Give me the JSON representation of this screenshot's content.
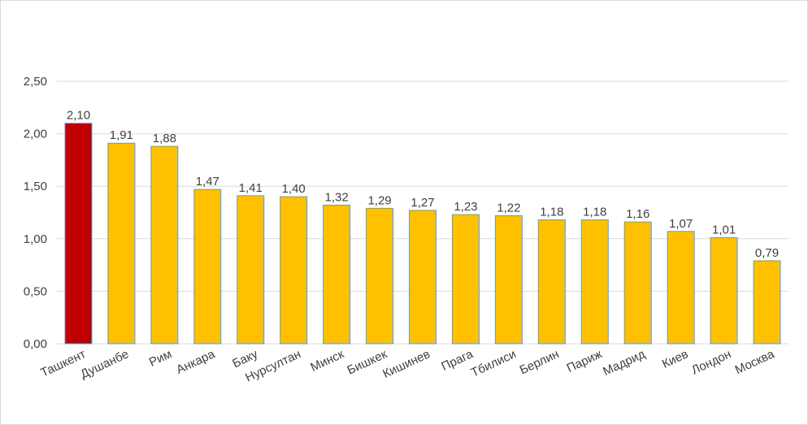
{
  "chart_data": {
    "type": "bar",
    "categories": [
      "Ташкент",
      "Душанбе",
      "Рим",
      "Анкара",
      "Баку",
      "Нурсултан",
      "Минск",
      "Бишкек",
      "Кишинев",
      "Прага",
      "Тбилиси",
      "Берлин",
      "Париж",
      "Мадрид",
      "Киев",
      "Лондон",
      "Москва"
    ],
    "values": [
      2.1,
      1.91,
      1.88,
      1.47,
      1.41,
      1.4,
      1.32,
      1.29,
      1.27,
      1.23,
      1.22,
      1.18,
      1.18,
      1.16,
      1.07,
      1.01,
      0.79
    ],
    "data_labels": [
      "2,10",
      "1,91",
      "1,88",
      "1,47",
      "1,41",
      "1,40",
      "1,32",
      "1,29",
      "1,27",
      "1,23",
      "1,22",
      "1,18",
      "1,18",
      "1,16",
      "1,07",
      "1,01",
      "0,79"
    ],
    "ylim": [
      0,
      2.5
    ],
    "yticks": [
      0,
      0.5,
      1.0,
      1.5,
      2.0,
      2.5
    ],
    "ytick_labels": [
      "0,00",
      "0,50",
      "1,00",
      "1,50",
      "2,00",
      "2,50"
    ],
    "grid": true,
    "legend": "none",
    "colors": {
      "default_bar": "#FFC000",
      "highlight_bar": "#C00000",
      "bar_edge": "#5B9BD5",
      "grid": "#D9D9D9"
    },
    "highlight_index": 0
  }
}
